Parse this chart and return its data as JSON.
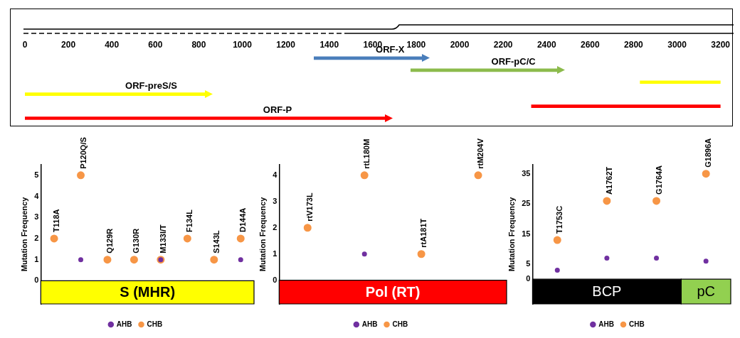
{
  "chart_data": [
    {
      "type": "bar",
      "orientation": "horizontal",
      "categories": [
        null,
        null,
        null,
        null,
        null,
        null
      ],
      "series": [
        {
          "colors": [
            "#4a7ebb",
            "#8cbb4c",
            "#ffff00",
            "#ffff00",
            "#ff0000",
            "#ff0000"
          ],
          "values": [
            500,
            675,
            370,
            830,
            870,
            1660
          ],
          "base": [
            1330,
            1775,
            2830,
            0,
            2330,
            0
          ]
        }
      ],
      "annotations": [
        "ORF-X",
        "ORF-pC/C",
        "ORF-preS/S",
        "ORF-P"
      ],
      "xlim": [
        0,
        3200
      ],
      "xticks": [
        0,
        200,
        400,
        600,
        800,
        1000,
        1200,
        1400,
        1600,
        1800,
        2000,
        2200,
        2400,
        2600,
        2800,
        3000,
        3200
      ],
      "tick_labels": "x",
      "grid": false,
      "legend": false
    },
    {
      "type": "scatter",
      "categories": [
        "T118A",
        "P120Q/S",
        "Q129R",
        "G130R",
        "M133I/T",
        "F134L",
        "S143L",
        "D144A"
      ],
      "series": [
        {
          "name": "AHB",
          "color": "#7030a0",
          "values": [
            null,
            1,
            null,
            null,
            1,
            null,
            null,
            1
          ]
        },
        {
          "name": "CHB",
          "color": "#f79646",
          "values": [
            2,
            5,
            1,
            1,
            1,
            2,
            1,
            2
          ]
        }
      ],
      "ylabel": "Mutation Frequency",
      "ylim": [
        -1.1,
        5.5
      ],
      "yticks": [
        0,
        1,
        2,
        3,
        4,
        5
      ],
      "bands": [
        {
          "axis": "x",
          "from": "T118A",
          "to": "D144A",
          "label": "S (MHR)",
          "color": "#ffff00"
        }
      ],
      "tick_labels": "y",
      "marker": "circle",
      "legend": "bottom",
      "grid": false
    },
    {
      "type": "scatter",
      "categories": [
        "rtV173L",
        "rtL180M",
        "rtA181T",
        "rtM204V"
      ],
      "series": [
        {
          "name": "AHB",
          "color": "#7030a0",
          "values": [
            null,
            1,
            null,
            null
          ]
        },
        {
          "name": "CHB",
          "color": "#f79646",
          "values": [
            2,
            4,
            1,
            4
          ]
        }
      ],
      "ylabel": "Mutation Frequency",
      "ylim": [
        -0.9,
        4.4
      ],
      "yticks": [
        0,
        1,
        2,
        3,
        4
      ],
      "bands": [
        {
          "axis": "x",
          "from": "rtV173L",
          "to": "rtM204V",
          "label": "Pol (RT)",
          "color": "#ff0000"
        }
      ],
      "tick_labels": "y",
      "marker": "circle",
      "legend": "bottom",
      "grid": false
    },
    {
      "type": "scatter",
      "categories": [
        "T1753C",
        "A1762T",
        "G1764A",
        "G1896A"
      ],
      "series": [
        {
          "name": "AHB",
          "color": "#7030a0",
          "values": [
            3,
            7,
            7,
            6
          ]
        },
        {
          "name": "CHB",
          "color": "#f79646",
          "values": [
            13,
            26,
            26,
            35
          ]
        }
      ],
      "ylabel": "Mutation Frequency",
      "ylim": [
        -8.2,
        38
      ],
      "yticks": [
        0,
        5,
        15,
        25,
        35
      ],
      "bands": [
        {
          "axis": "x",
          "from": "T1753C",
          "to": "G1764A",
          "label": "BCP",
          "color": "#000000"
        },
        {
          "axis": "x",
          "from": "G1896A",
          "to": "G1896A",
          "label": "pC",
          "color": "#92d050"
        }
      ],
      "tick_labels": "y",
      "marker": "circle",
      "legend": "bottom",
      "grid": false
    }
  ]
}
